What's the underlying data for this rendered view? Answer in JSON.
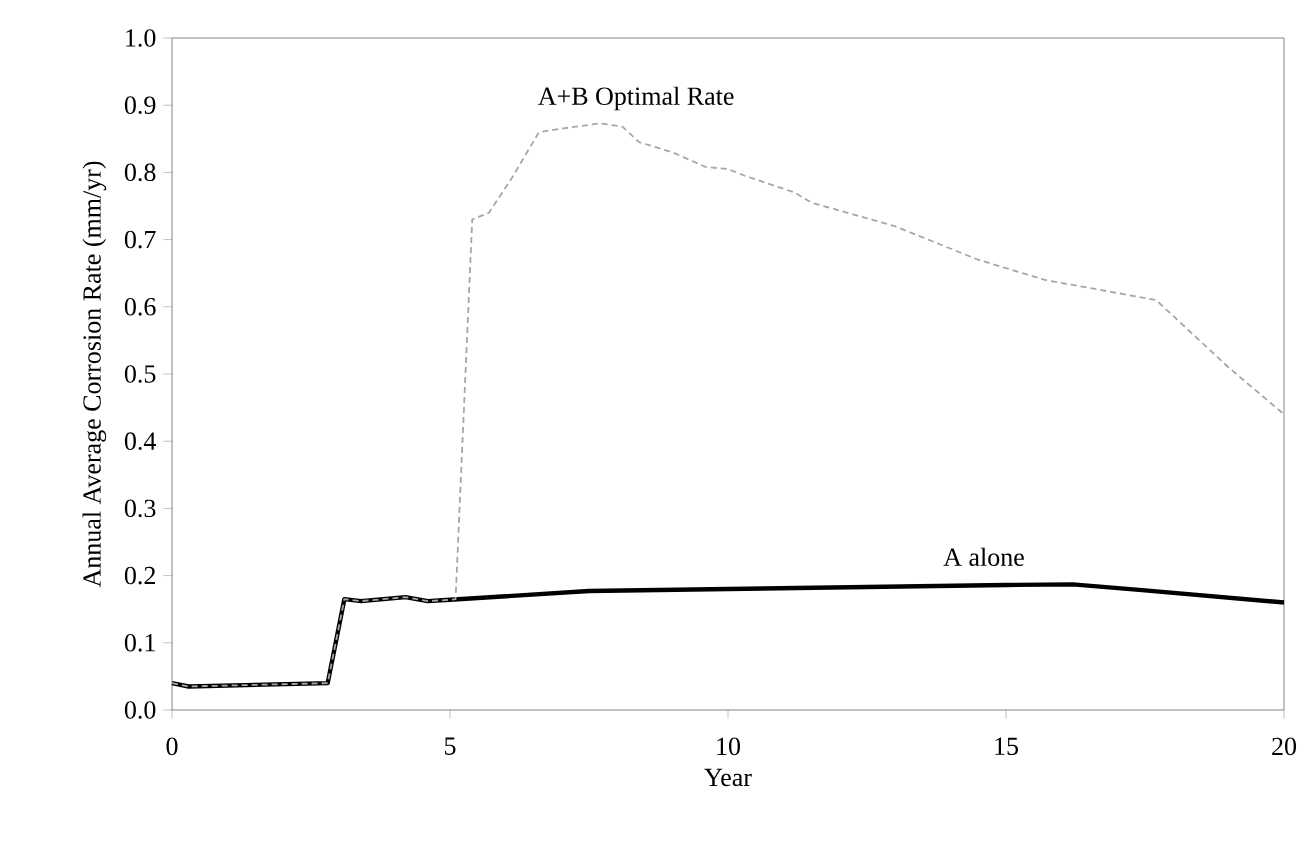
{
  "chart_data": {
    "type": "line",
    "xlabel": "Year",
    "ylabel": "Annual Average Corrosion Rate (mm/yr)",
    "xlim": [
      0,
      20
    ],
    "ylim": [
      0,
      1.0
    ],
    "xticks": [
      0,
      5,
      10,
      15,
      20
    ],
    "yticks": [
      {
        "value": 0,
        "label": "0.0"
      },
      {
        "value": 0.1,
        "label": "0.1"
      },
      {
        "value": 0.2,
        "label": "0.2"
      },
      {
        "value": 0.3,
        "label": "0.3"
      },
      {
        "value": 0.4,
        "label": "0.4"
      },
      {
        "value": 0.5,
        "label": "0.5"
      },
      {
        "value": 0.6,
        "label": "0.6"
      },
      {
        "value": 0.7,
        "label": "0.7"
      },
      {
        "value": 0.8,
        "label": "0.8"
      },
      {
        "value": 0.9,
        "label": "0.9"
      },
      {
        "value": 1.0,
        "label": "1.0"
      }
    ],
    "grid": false,
    "legend": false,
    "marker": "none",
    "series": [
      {
        "name": "A alone",
        "color": "#000000",
        "line_style": "solid",
        "x": [
          0,
          0.3,
          2.8,
          3.1,
          3.4,
          4.2,
          4.6,
          5,
          7.5,
          10,
          15,
          16.2,
          17.5,
          20
        ],
        "values": [
          0.04,
          0.035,
          0.04,
          0.165,
          0.162,
          0.168,
          0.162,
          0.164,
          0.177,
          0.18,
          0.186,
          0.187,
          0.178,
          0.16
        ]
      },
      {
        "name": "A+B Optimal Rate",
        "color": "#a6a6a6",
        "line_style": "dashed",
        "x": [
          0,
          0.3,
          2.8,
          3.1,
          3.4,
          4.2,
          4.6,
          5,
          5.1,
          5.4,
          5.7,
          6.1,
          6.6,
          7.0,
          7.7,
          8.1,
          8.4,
          9.0,
          9.6,
          10,
          10.3,
          11.2,
          11.5,
          13.0,
          14.5,
          15.7,
          17.7,
          19,
          20
        ],
        "values": [
          0.04,
          0.035,
          0.04,
          0.165,
          0.162,
          0.168,
          0.162,
          0.164,
          0.165,
          0.73,
          0.74,
          0.79,
          0.86,
          0.865,
          0.873,
          0.868,
          0.845,
          0.83,
          0.808,
          0.805,
          0.795,
          0.77,
          0.755,
          0.72,
          0.67,
          0.64,
          0.61,
          0.51,
          0.44
        ]
      }
    ]
  }
}
